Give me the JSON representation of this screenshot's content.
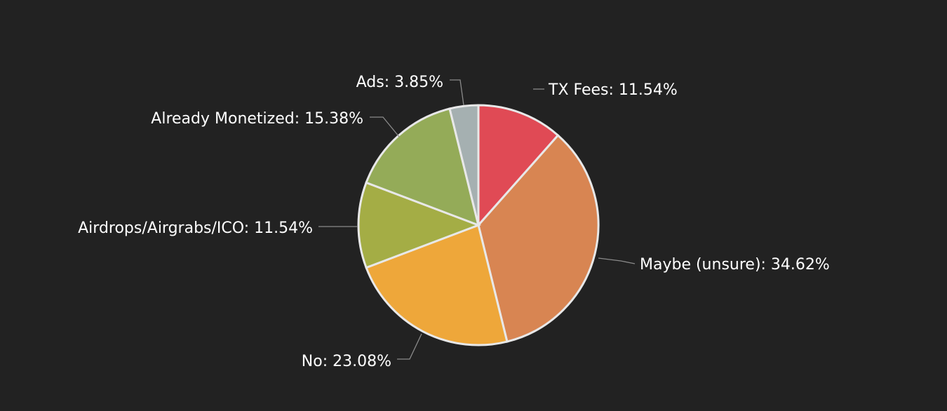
{
  "chart_data": {
    "type": "pie",
    "title": "",
    "start_angle_deg": 0,
    "direction": "clockwise",
    "slices": [
      {
        "label": "TX Fees",
        "value": 11.54,
        "display": "TX Fees: 11.54%",
        "color": "#e04a55"
      },
      {
        "label": "Maybe (unsure)",
        "value": 34.62,
        "display": "Maybe (unsure): 34.62%",
        "color": "#d88552"
      },
      {
        "label": "No",
        "value": 23.08,
        "display": "No: 23.08%",
        "color": "#eea73a"
      },
      {
        "label": "Airdrops/Airgrabs/ICO",
        "value": 11.54,
        "display": "Airdrops/Airgrabs/ICO: 11.54%",
        "color": "#a4ad45"
      },
      {
        "label": "Already Monetized",
        "value": 15.38,
        "display": "Already Monetized: 15.38%",
        "color": "#94ab58"
      },
      {
        "label": "Ads",
        "value": 3.85,
        "display": "Ads: 3.85%",
        "color": "#a5b0b1"
      }
    ]
  }
}
